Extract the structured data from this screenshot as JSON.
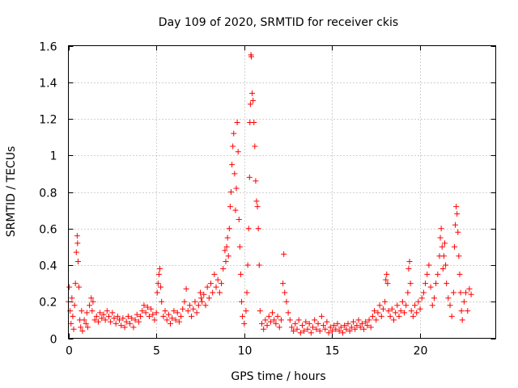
{
  "chart_data": {
    "type": "scatter",
    "title": "Day 109 of 2020, SRMTID for receiver ckis",
    "xlabel": "GPS time / hours",
    "ylabel": "SRMTID / TECUs",
    "xlim": [
      0,
      24.3
    ],
    "ylim": [
      0,
      1.6
    ],
    "xticks": [
      0,
      5,
      10,
      15,
      20
    ],
    "xtick_labels": [
      "0",
      "5",
      "10",
      "15",
      "20"
    ],
    "yticks": [
      0,
      0.2,
      0.4,
      0.6,
      0.8,
      1.0,
      1.2,
      1.4,
      1.6
    ],
    "ytick_labels": [
      "0",
      "0.2",
      "0.4",
      "0.6",
      "0.8",
      "1",
      "1.2",
      "1.4",
      "1.6"
    ],
    "grid": true,
    "marker": "+",
    "color": "#ff0000",
    "series": [
      {
        "name": "SRMTID",
        "points": [
          [
            0.0,
            0.2
          ],
          [
            0.05,
            0.28
          ],
          [
            0.1,
            0.15
          ],
          [
            0.15,
            0.08
          ],
          [
            0.2,
            0.22
          ],
          [
            0.25,
            0.12
          ],
          [
            0.3,
            0.05
          ],
          [
            0.35,
            0.18
          ],
          [
            0.4,
            0.3
          ],
          [
            0.45,
            0.47
          ],
          [
            0.5,
            0.56
          ],
          [
            0.52,
            0.52
          ],
          [
            0.55,
            0.42
          ],
          [
            0.6,
            0.28
          ],
          [
            0.65,
            0.1
          ],
          [
            0.7,
            0.06
          ],
          [
            0.75,
            0.15
          ],
          [
            0.8,
            0.04
          ],
          [
            0.9,
            0.1
          ],
          [
            1.0,
            0.08
          ],
          [
            1.05,
            0.14
          ],
          [
            1.1,
            0.06
          ],
          [
            1.2,
            0.18
          ],
          [
            1.3,
            0.22
          ],
          [
            1.35,
            0.15
          ],
          [
            1.4,
            0.2
          ],
          [
            1.5,
            0.1
          ],
          [
            1.6,
            0.12
          ],
          [
            1.7,
            0.09
          ],
          [
            1.8,
            0.14
          ],
          [
            1.9,
            0.11
          ],
          [
            2.0,
            0.13
          ],
          [
            2.1,
            0.1
          ],
          [
            2.2,
            0.15
          ],
          [
            2.3,
            0.12
          ],
          [
            2.4,
            0.09
          ],
          [
            2.5,
            0.14
          ],
          [
            2.6,
            0.11
          ],
          [
            2.7,
            0.08
          ],
          [
            2.8,
            0.12
          ],
          [
            2.9,
            0.1
          ],
          [
            3.0,
            0.07
          ],
          [
            3.1,
            0.11
          ],
          [
            3.2,
            0.06
          ],
          [
            3.3,
            0.09
          ],
          [
            3.4,
            0.12
          ],
          [
            3.5,
            0.08
          ],
          [
            3.6,
            0.11
          ],
          [
            3.7,
            0.06
          ],
          [
            3.8,
            0.1
          ],
          [
            3.9,
            0.13
          ],
          [
            4.0,
            0.09
          ],
          [
            4.1,
            0.12
          ],
          [
            4.2,
            0.15
          ],
          [
            4.3,
            0.18
          ],
          [
            4.4,
            0.14
          ],
          [
            4.5,
            0.17
          ],
          [
            4.6,
            0.12
          ],
          [
            4.7,
            0.16
          ],
          [
            4.8,
            0.13
          ],
          [
            4.9,
            0.1
          ],
          [
            5.0,
            0.14
          ],
          [
            5.05,
            0.25
          ],
          [
            5.1,
            0.3
          ],
          [
            5.15,
            0.35
          ],
          [
            5.2,
            0.38
          ],
          [
            5.25,
            0.28
          ],
          [
            5.3,
            0.2
          ],
          [
            5.4,
            0.12
          ],
          [
            5.5,
            0.15
          ],
          [
            5.6,
            0.1
          ],
          [
            5.7,
            0.13
          ],
          [
            5.8,
            0.08
          ],
          [
            5.9,
            0.11
          ],
          [
            6.0,
            0.15
          ],
          [
            6.1,
            0.1
          ],
          [
            6.2,
            0.14
          ],
          [
            6.3,
            0.09
          ],
          [
            6.4,
            0.12
          ],
          [
            6.5,
            0.16
          ],
          [
            6.6,
            0.2
          ],
          [
            6.7,
            0.27
          ],
          [
            6.8,
            0.15
          ],
          [
            6.9,
            0.18
          ],
          [
            7.0,
            0.12
          ],
          [
            7.1,
            0.16
          ],
          [
            7.2,
            0.2
          ],
          [
            7.3,
            0.14
          ],
          [
            7.4,
            0.18
          ],
          [
            7.5,
            0.25
          ],
          [
            7.55,
            0.22
          ],
          [
            7.6,
            0.2
          ],
          [
            7.7,
            0.24
          ],
          [
            7.8,
            0.18
          ],
          [
            7.9,
            0.28
          ],
          [
            8.0,
            0.22
          ],
          [
            8.1,
            0.3
          ],
          [
            8.2,
            0.25
          ],
          [
            8.3,
            0.35
          ],
          [
            8.4,
            0.28
          ],
          [
            8.5,
            0.32
          ],
          [
            8.6,
            0.25
          ],
          [
            8.7,
            0.3
          ],
          [
            8.8,
            0.38
          ],
          [
            8.9,
            0.48
          ],
          [
            8.95,
            0.42
          ],
          [
            9.0,
            0.5
          ],
          [
            9.05,
            0.55
          ],
          [
            9.1,
            0.45
          ],
          [
            9.15,
            0.6
          ],
          [
            9.2,
            0.72
          ],
          [
            9.25,
            0.8
          ],
          [
            9.3,
            0.95
          ],
          [
            9.35,
            1.05
          ],
          [
            9.4,
            1.12
          ],
          [
            9.45,
            0.9
          ],
          [
            9.5,
            0.7
          ],
          [
            9.55,
            0.82
          ],
          [
            9.6,
            1.18
          ],
          [
            9.65,
            1.02
          ],
          [
            9.7,
            0.65
          ],
          [
            9.75,
            0.5
          ],
          [
            9.8,
            0.35
          ],
          [
            9.85,
            0.2
          ],
          [
            9.9,
            0.12
          ],
          [
            10.0,
            0.08
          ],
          [
            10.1,
            0.15
          ],
          [
            10.15,
            0.25
          ],
          [
            10.2,
            0.4
          ],
          [
            10.25,
            0.6
          ],
          [
            10.3,
            0.88
          ],
          [
            10.32,
            1.18
          ],
          [
            10.35,
            1.28
          ],
          [
            10.38,
            1.55
          ],
          [
            10.4,
            1.54
          ],
          [
            10.45,
            1.34
          ],
          [
            10.5,
            1.3
          ],
          [
            10.55,
            1.18
          ],
          [
            10.6,
            1.05
          ],
          [
            10.65,
            0.86
          ],
          [
            10.7,
            0.75
          ],
          [
            10.75,
            0.72
          ],
          [
            10.8,
            0.6
          ],
          [
            10.85,
            0.4
          ],
          [
            10.9,
            0.15
          ],
          [
            11.0,
            0.08
          ],
          [
            11.1,
            0.05
          ],
          [
            11.2,
            0.1
          ],
          [
            11.3,
            0.07
          ],
          [
            11.4,
            0.12
          ],
          [
            11.5,
            0.09
          ],
          [
            11.6,
            0.14
          ],
          [
            11.7,
            0.1
          ],
          [
            11.8,
            0.08
          ],
          [
            11.9,
            0.12
          ],
          [
            12.0,
            0.06
          ],
          [
            12.1,
            0.1
          ],
          [
            12.2,
            0.3
          ],
          [
            12.25,
            0.46
          ],
          [
            12.3,
            0.25
          ],
          [
            12.4,
            0.2
          ],
          [
            12.5,
            0.14
          ],
          [
            12.6,
            0.1
          ],
          [
            12.7,
            0.06
          ],
          [
            12.8,
            0.04
          ],
          [
            12.9,
            0.08
          ],
          [
            13.0,
            0.05
          ],
          [
            13.1,
            0.1
          ],
          [
            13.2,
            0.03
          ],
          [
            13.3,
            0.07
          ],
          [
            13.4,
            0.04
          ],
          [
            13.5,
            0.09
          ],
          [
            13.6,
            0.05
          ],
          [
            13.7,
            0.08
          ],
          [
            13.8,
            0.03
          ],
          [
            13.9,
            0.06
          ],
          [
            14.0,
            0.1
          ],
          [
            14.1,
            0.05
          ],
          [
            14.2,
            0.08
          ],
          [
            14.3,
            0.04
          ],
          [
            14.4,
            0.12
          ],
          [
            14.5,
            0.07
          ],
          [
            14.6,
            0.05
          ],
          [
            14.7,
            0.09
          ],
          [
            14.8,
            0.03
          ],
          [
            14.9,
            0.06
          ],
          [
            15.0,
            0.04
          ],
          [
            15.1,
            0.07
          ],
          [
            15.2,
            0.05
          ],
          [
            15.3,
            0.08
          ],
          [
            15.4,
            0.04
          ],
          [
            15.5,
            0.06
          ],
          [
            15.6,
            0.03
          ],
          [
            15.7,
            0.07
          ],
          [
            15.8,
            0.05
          ],
          [
            15.9,
            0.08
          ],
          [
            16.0,
            0.04
          ],
          [
            16.1,
            0.06
          ],
          [
            16.2,
            0.09
          ],
          [
            16.3,
            0.05
          ],
          [
            16.4,
            0.07
          ],
          [
            16.5,
            0.1
          ],
          [
            16.6,
            0.06
          ],
          [
            16.7,
            0.08
          ],
          [
            16.8,
            0.05
          ],
          [
            16.9,
            0.09
          ],
          [
            17.0,
            0.07
          ],
          [
            17.1,
            0.1
          ],
          [
            17.2,
            0.06
          ],
          [
            17.3,
            0.12
          ],
          [
            17.4,
            0.15
          ],
          [
            17.5,
            0.1
          ],
          [
            17.6,
            0.14
          ],
          [
            17.7,
            0.18
          ],
          [
            17.8,
            0.12
          ],
          [
            17.9,
            0.16
          ],
          [
            18.0,
            0.2
          ],
          [
            18.05,
            0.32
          ],
          [
            18.1,
            0.35
          ],
          [
            18.15,
            0.3
          ],
          [
            18.2,
            0.15
          ],
          [
            18.3,
            0.12
          ],
          [
            18.4,
            0.16
          ],
          [
            18.5,
            0.1
          ],
          [
            18.6,
            0.14
          ],
          [
            18.7,
            0.18
          ],
          [
            18.8,
            0.12
          ],
          [
            18.9,
            0.15
          ],
          [
            19.0,
            0.2
          ],
          [
            19.1,
            0.14
          ],
          [
            19.2,
            0.18
          ],
          [
            19.3,
            0.25
          ],
          [
            19.35,
            0.38
          ],
          [
            19.4,
            0.42
          ],
          [
            19.45,
            0.3
          ],
          [
            19.5,
            0.15
          ],
          [
            19.6,
            0.12
          ],
          [
            19.7,
            0.18
          ],
          [
            19.8,
            0.14
          ],
          [
            19.9,
            0.2
          ],
          [
            20.0,
            0.16
          ],
          [
            20.1,
            0.22
          ],
          [
            20.2,
            0.25
          ],
          [
            20.3,
            0.3
          ],
          [
            20.4,
            0.35
          ],
          [
            20.5,
            0.4
          ],
          [
            20.6,
            0.28
          ],
          [
            20.7,
            0.18
          ],
          [
            20.8,
            0.22
          ],
          [
            20.9,
            0.3
          ],
          [
            21.0,
            0.35
          ],
          [
            21.1,
            0.45
          ],
          [
            21.15,
            0.55
          ],
          [
            21.2,
            0.6
          ],
          [
            21.25,
            0.5
          ],
          [
            21.3,
            0.38
          ],
          [
            21.35,
            0.45
          ],
          [
            21.4,
            0.52
          ],
          [
            21.45,
            0.4
          ],
          [
            21.5,
            0.3
          ],
          [
            21.6,
            0.22
          ],
          [
            21.7,
            0.18
          ],
          [
            21.8,
            0.12
          ],
          [
            21.9,
            0.25
          ],
          [
            21.95,
            0.5
          ],
          [
            22.0,
            0.62
          ],
          [
            22.05,
            0.72
          ],
          [
            22.1,
            0.68
          ],
          [
            22.15,
            0.58
          ],
          [
            22.2,
            0.45
          ],
          [
            22.25,
            0.35
          ],
          [
            22.3,
            0.25
          ],
          [
            22.35,
            0.15
          ],
          [
            22.4,
            0.1
          ],
          [
            22.5,
            0.2
          ],
          [
            22.6,
            0.25
          ],
          [
            22.7,
            0.15
          ],
          [
            22.8,
            0.27
          ],
          [
            22.9,
            0.24
          ]
        ]
      }
    ]
  }
}
